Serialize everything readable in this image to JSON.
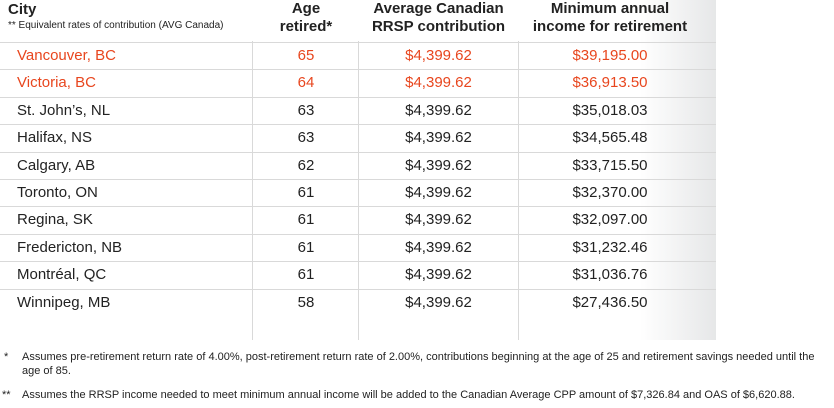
{
  "headers": {
    "city": "City",
    "city_note": "** Equivalent rates of contribution (AVG Canada)",
    "age_line1": "Age",
    "age_line2": "retired*",
    "rrsp_line1": "Average Canadian",
    "rrsp_line2": "RRSP contribution",
    "income_line1": "Minimum annual",
    "income_line2": "income for retirement"
  },
  "accent_color": "#e8461e",
  "rows": [
    {
      "city": "Vancouver, BC",
      "age": "65",
      "rrsp": "$4,399.62",
      "income": "$39,195.00",
      "highlight": true
    },
    {
      "city": "Victoria, BC",
      "age": "64",
      "rrsp": "$4,399.62",
      "income": "$36,913.50",
      "highlight": true
    },
    {
      "city": "St. John’s, NL",
      "age": "63",
      "rrsp": "$4,399.62",
      "income": "$35,018.03",
      "highlight": false
    },
    {
      "city": "Halifax, NS",
      "age": "63",
      "rrsp": "$4,399.62",
      "income": "$34,565.48",
      "highlight": false
    },
    {
      "city": "Calgary, AB",
      "age": "62",
      "rrsp": "$4,399.62",
      "income": "$33,715.50",
      "highlight": false
    },
    {
      "city": "Toronto, ON",
      "age": "61",
      "rrsp": "$4,399.62",
      "income": "$32,370.00",
      "highlight": false
    },
    {
      "city": "Regina, SK",
      "age": "61",
      "rrsp": "$4,399.62",
      "income": "$32,097.00",
      "highlight": false
    },
    {
      "city": "Fredericton, NB",
      "age": "61",
      "rrsp": "$4,399.62",
      "income": "$31,232.46",
      "highlight": false
    },
    {
      "city": "Montréal, QC",
      "age": "61",
      "rrsp": "$4,399.62",
      "income": "$31,036.76",
      "highlight": false
    },
    {
      "city": "Winnipeg, MB",
      "age": "58",
      "rrsp": "$4,399.62",
      "income": "$27,436.50",
      "highlight": false
    }
  ],
  "footnotes": [
    {
      "mark": "*",
      "text": "Assumes pre-retirement return rate of 4.00%, post-retirement return rate of 2.00%, contributions beginning at the age of 25 and retirement savings needed until the age of 85."
    },
    {
      "mark": "**",
      "text": "Assumes the RRSP income needed to meet minimum annual income will be added to the Canadian Average CPP amount of $7,326.84 and OAS of $6,620.88."
    }
  ]
}
